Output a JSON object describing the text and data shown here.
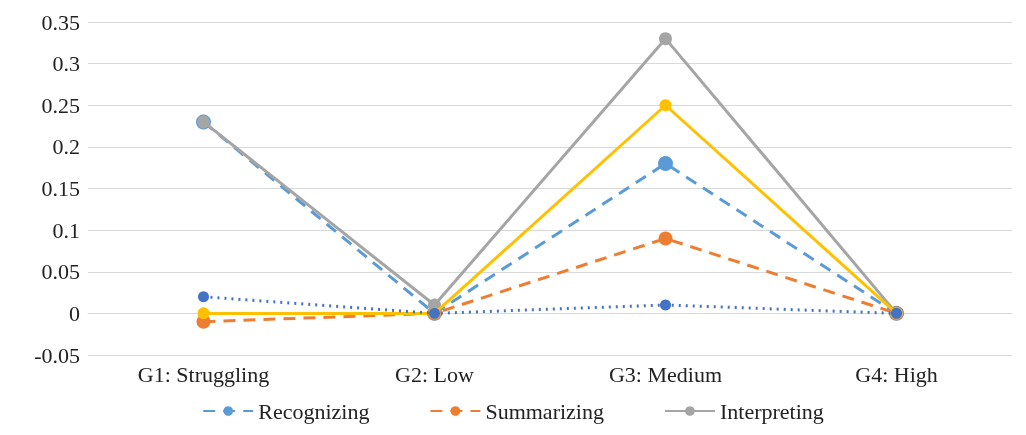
{
  "chart_data": {
    "type": "line",
    "categories": [
      "G1: Struggling",
      "G2: Low",
      "G3: Medium",
      "G4: High"
    ],
    "series": [
      {
        "name": "Recognizing",
        "color": "#5b9bd5",
        "values": [
          0.23,
          0,
          0.18,
          0
        ],
        "line_style": "dashed"
      },
      {
        "name": "Summarizing",
        "color": "#ed7d31",
        "values": [
          -0.01,
          0,
          0.09,
          0
        ],
        "line_style": "dashed"
      },
      {
        "name": "Interpreting",
        "color": "#a5a5a5",
        "values": [
          0.23,
          0.01,
          0.33,
          0
        ],
        "line_style": "solid"
      },
      {
        "color": "#ffc000",
        "values": [
          0,
          0,
          0.25,
          0
        ],
        "line_style": "solid"
      },
      {
        "color": "#4472c4",
        "values": [
          0.02,
          0,
          0.01,
          0
        ],
        "line_style": "dotted"
      }
    ],
    "ylim": [
      -0.05,
      0.35
    ],
    "yticks": [
      -0.05,
      0,
      0.05,
      0.1,
      0.15,
      0.2,
      0.25,
      0.3,
      0.35
    ],
    "grid": "y",
    "legend": "bottom",
    "marker": "circle"
  }
}
